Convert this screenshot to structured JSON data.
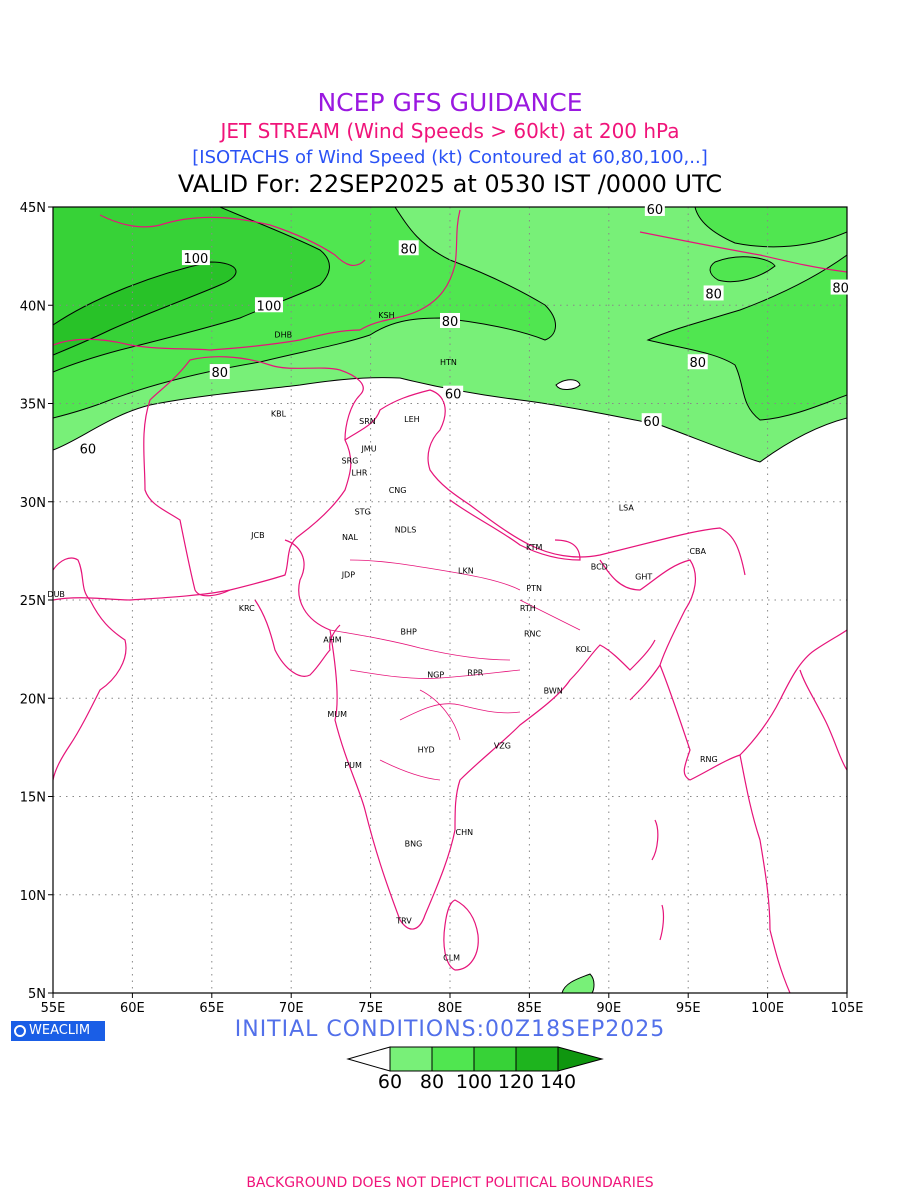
{
  "title": {
    "line1": "NCEP GFS GUIDANCE",
    "line2": "JET STREAM (Wind Speeds > 60kt) at 200 hPa",
    "line3": "[ISOTACHS of Wind Speed (kt) Contoured at 60,80,100,..]",
    "valid": "VALID For: 22SEP2025 at 0530 IST /0000 UTC"
  },
  "map": {
    "lon_ticks": [
      "55E",
      "60E",
      "65E",
      "70E",
      "75E",
      "80E",
      "85E",
      "90E",
      "95E",
      "100E",
      "105E"
    ],
    "lat_ticks": [
      "45N",
      "40N",
      "35N",
      "30N",
      "25N",
      "20N",
      "15N",
      "10N",
      "5N"
    ],
    "lon_range": [
      55,
      105
    ],
    "lat_range": [
      5,
      45
    ],
    "grid": "dotted",
    "boundary_color": "#e6147a",
    "cities": [
      {
        "code": "DHB",
        "lon": 69.5,
        "lat": 38.5
      },
      {
        "code": "KSH",
        "lon": 76.0,
        "lat": 39.5
      },
      {
        "code": "HTN",
        "lon": 79.9,
        "lat": 37.1
      },
      {
        "code": "KBL",
        "lon": 69.2,
        "lat": 34.5
      },
      {
        "code": "SRN",
        "lon": 74.8,
        "lat": 34.1
      },
      {
        "code": "LEH",
        "lon": 77.6,
        "lat": 34.2
      },
      {
        "code": "JMU",
        "lon": 74.9,
        "lat": 32.7
      },
      {
        "code": "SRG",
        "lon": 73.7,
        "lat": 32.1
      },
      {
        "code": "LHR",
        "lon": 74.3,
        "lat": 31.5
      },
      {
        "code": "CNG",
        "lon": 76.7,
        "lat": 30.6
      },
      {
        "code": "STG",
        "lon": 74.5,
        "lat": 29.5
      },
      {
        "code": "NDLS",
        "lon": 77.2,
        "lat": 28.6
      },
      {
        "code": "LSA",
        "lon": 91.1,
        "lat": 29.7
      },
      {
        "code": "JCB",
        "lon": 67.9,
        "lat": 28.3
      },
      {
        "code": "NAL",
        "lon": 73.7,
        "lat": 28.2
      },
      {
        "code": "KTM",
        "lon": 85.3,
        "lat": 27.7
      },
      {
        "code": "CBA",
        "lon": 95.6,
        "lat": 27.5
      },
      {
        "code": "BCD",
        "lon": 89.4,
        "lat": 26.7
      },
      {
        "code": "GHT",
        "lon": 92.2,
        "lat": 26.2
      },
      {
        "code": "JDP",
        "lon": 73.6,
        "lat": 26.3
      },
      {
        "code": "LKN",
        "lon": 81.0,
        "lat": 26.5
      },
      {
        "code": "PTN",
        "lon": 85.3,
        "lat": 25.6
      },
      {
        "code": "DUB",
        "lon": 55.2,
        "lat": 25.3
      },
      {
        "code": "KRC",
        "lon": 67.2,
        "lat": 24.6
      },
      {
        "code": "RTH",
        "lon": 84.9,
        "lat": 24.6
      },
      {
        "code": "RNC",
        "lon": 85.2,
        "lat": 23.3
      },
      {
        "code": "AHM",
        "lon": 72.6,
        "lat": 23.0
      },
      {
        "code": "BHP",
        "lon": 77.4,
        "lat": 23.4
      },
      {
        "code": "KOL",
        "lon": 88.4,
        "lat": 22.5
      },
      {
        "code": "RPR",
        "lon": 81.6,
        "lat": 21.3
      },
      {
        "code": "NGP",
        "lon": 79.1,
        "lat": 21.2
      },
      {
        "code": "BWN",
        "lon": 86.5,
        "lat": 20.4
      },
      {
        "code": "MUM",
        "lon": 72.9,
        "lat": 19.2
      },
      {
        "code": "HYD",
        "lon": 78.5,
        "lat": 17.4
      },
      {
        "code": "VZG",
        "lon": 83.3,
        "lat": 17.6
      },
      {
        "code": "RNG",
        "lon": 96.3,
        "lat": 16.9
      },
      {
        "code": "PUM",
        "lon": 73.9,
        "lat": 16.6
      },
      {
        "code": "CHN",
        "lon": 80.9,
        "lat": 13.2
      },
      {
        "code": "BNG",
        "lon": 77.7,
        "lat": 12.6
      },
      {
        "code": "TRV",
        "lon": 77.1,
        "lat": 8.7
      },
      {
        "code": "CLM",
        "lon": 80.1,
        "lat": 6.8
      }
    ],
    "contour_labels": [
      {
        "text": "100",
        "lon": 64.0,
        "lat": 42.4
      },
      {
        "text": "100",
        "lon": 68.6,
        "lat": 40.0
      },
      {
        "text": "80",
        "lon": 65.5,
        "lat": 36.6
      },
      {
        "text": "60",
        "lon": 57.2,
        "lat": 32.7
      },
      {
        "text": "80",
        "lon": 77.4,
        "lat": 42.9
      },
      {
        "text": "80",
        "lon": 80.0,
        "lat": 39.2
      },
      {
        "text": "60",
        "lon": 80.2,
        "lat": 35.5
      },
      {
        "text": "60",
        "lon": 92.9,
        "lat": 44.9
      },
      {
        "text": "80",
        "lon": 96.6,
        "lat": 40.6
      },
      {
        "text": "80",
        "lon": 104.6,
        "lat": 40.9
      },
      {
        "text": "80",
        "lon": 95.6,
        "lat": 37.1
      },
      {
        "text": "60",
        "lon": 92.7,
        "lat": 34.1
      }
    ]
  },
  "colors": {
    "band_60": "#78f078",
    "band_80": "#50e650",
    "band_100": "#37d237",
    "band_120": "#1eb41e",
    "band_140": "#0f960f",
    "boundary": "#e6147a"
  },
  "colorbar": {
    "labels": [
      "60",
      "80",
      "100",
      "120",
      "140"
    ],
    "colors": [
      "#ffffff",
      "#78f078",
      "#50e650",
      "#37d237",
      "#1eb41e",
      "#0f960f"
    ]
  },
  "logo": "WEACLIM",
  "initial_conditions": "INITIAL CONDITIONS:00Z18SEP2025",
  "footer_note": "BACKGROUND DOES NOT DEPICT POLITICAL BOUNDARIES"
}
